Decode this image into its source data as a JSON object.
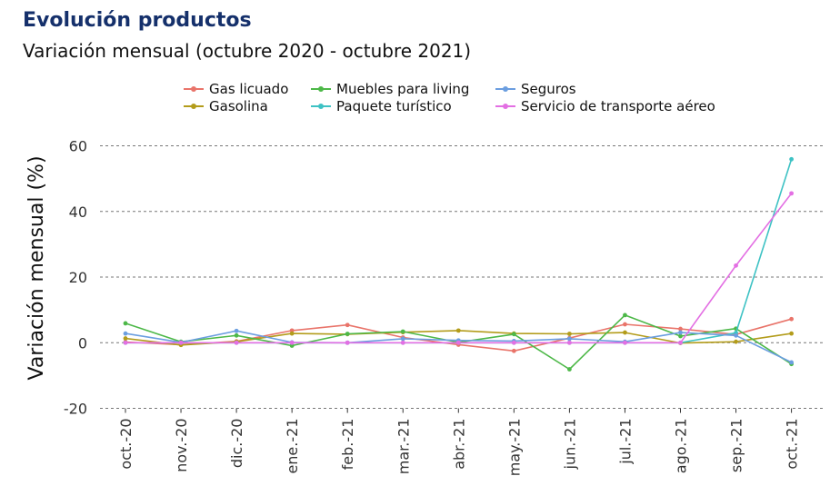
{
  "title": "Evolución productos",
  "subtitle": "Variación mensual (octubre 2020 - octubre 2021)",
  "chart_data": {
    "type": "line",
    "ylabel": "Variación mensual (%)",
    "xlabel": "",
    "ylim": [
      -20,
      60
    ],
    "yticks": [
      -20,
      0,
      20,
      40,
      60
    ],
    "grid": "horizontal dashed",
    "legend_position": "top",
    "categories": [
      "oct.-20",
      "nov.-20",
      "dic.-20",
      "ene.-21",
      "feb.-21",
      "mar.-21",
      "abr.-21",
      "may.-21",
      "jun.-21",
      "jul.-21",
      "ago.-21",
      "sep.-21",
      "oct.-21"
    ],
    "series": [
      {
        "name": "Gas licuado",
        "color": "#E9746A",
        "values": [
          0.2,
          -0.6,
          0.4,
          3.7,
          5.4,
          1.6,
          -0.6,
          -2.5,
          1.4,
          5.6,
          4.2,
          2.5,
          7.2
        ]
      },
      {
        "name": "Gasolina",
        "color": "#B39C1B",
        "values": [
          1.3,
          -0.7,
          0.3,
          2.8,
          2.6,
          3.2,
          3.7,
          2.8,
          2.7,
          3.1,
          -0.1,
          0.3,
          2.8
        ]
      },
      {
        "name": "Muebles para living",
        "color": "#4DB848",
        "values": [
          5.9,
          0.3,
          2.2,
          -0.9,
          2.7,
          3.4,
          0.1,
          2.6,
          -8.1,
          8.4,
          2.0,
          4.3,
          -6.5
        ]
      },
      {
        "name": "Paquete turístico",
        "color": "#3EC2C4",
        "values": [
          0.0,
          0.0,
          0.0,
          0.0,
          0.0,
          0.0,
          0.0,
          0.0,
          0.0,
          0.0,
          0.0,
          3.0,
          55.9
        ]
      },
      {
        "name": "Seguros",
        "color": "#6B9EE0",
        "values": [
          2.8,
          0.1,
          3.6,
          0.1,
          0.0,
          1.2,
          0.7,
          0.5,
          1.2,
          0.3,
          3.1,
          2.2,
          -6.0
        ]
      },
      {
        "name": "Servicio de transporte aéreo",
        "color": "#E36FE3",
        "values": [
          0.0,
          0.0,
          0.0,
          0.0,
          0.0,
          0.0,
          0.0,
          0.0,
          0.0,
          0.0,
          0.0,
          23.5,
          45.5
        ]
      }
    ]
  },
  "legend": [
    {
      "label": "Gas licuado",
      "color": "#E9746A"
    },
    {
      "label": "Muebles para living",
      "color": "#4DB848"
    },
    {
      "label": "Seguros",
      "color": "#6B9EE0"
    },
    {
      "label": "Gasolina",
      "color": "#B39C1B"
    },
    {
      "label": "Paquete turístico",
      "color": "#3EC2C4"
    },
    {
      "label": "Servicio de transporte aéreo",
      "color": "#E36FE3"
    }
  ]
}
